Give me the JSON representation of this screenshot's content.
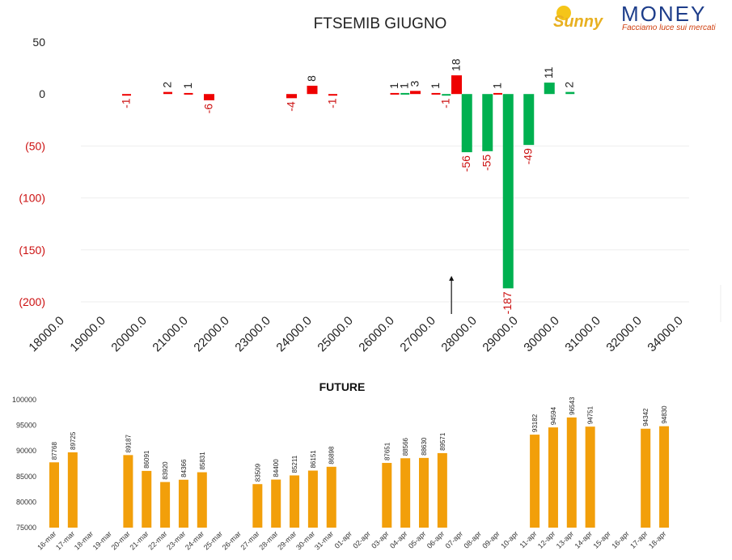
{
  "logo": {
    "sunny": "Sunny",
    "money": "MONEY",
    "tagline": "Facciamo luce sui mercati"
  },
  "chart_data": [
    {
      "type": "bar",
      "title": "FTSEMIB GIUGNO",
      "ylim": [
        -200,
        50
      ],
      "y_ticks": [
        {
          "value": 50,
          "label": "50",
          "color": "#222222"
        },
        {
          "value": 0,
          "label": "0",
          "color": "#222222"
        },
        {
          "value": -50,
          "label": "(50)",
          "color": "#cc1111"
        },
        {
          "value": -100,
          "label": "(100)",
          "color": "#cc1111"
        },
        {
          "value": -150,
          "label": "(150)",
          "color": "#cc1111"
        },
        {
          "value": -200,
          "label": "(200)",
          "color": "#cc1111"
        }
      ],
      "grid": true,
      "x_tick_labels": [
        "18000.0",
        "19000.0",
        "20000.0",
        "21000.0",
        "22000.0",
        "23000.0",
        "24000.0",
        "25000.0",
        "26000.0",
        "27000.0",
        "28000.0",
        "29000.0",
        "30000.0",
        "31000.0",
        "32000.0",
        "34000.0"
      ],
      "colors": {
        "call": "#ee0000",
        "put": "#00b050",
        "negative_label": "#cc1111",
        "positive_label": "#222222"
      },
      "bars": [
        {
          "strike": 19500,
          "value": -1,
          "series": "call"
        },
        {
          "strike": 20500,
          "value": 2,
          "series": "call"
        },
        {
          "strike": 21000,
          "value": 1,
          "series": "call"
        },
        {
          "strike": 21500,
          "value": -6,
          "series": "call"
        },
        {
          "strike": 23500,
          "value": -4,
          "series": "call"
        },
        {
          "strike": 24000,
          "value": 8,
          "series": "call"
        },
        {
          "strike": 24500,
          "value": -1,
          "series": "call"
        },
        {
          "strike": 26000,
          "value": 1,
          "series": "call"
        },
        {
          "strike": 26250,
          "value": 1,
          "series": "put"
        },
        {
          "strike": 26500,
          "value": 3,
          "series": "call"
        },
        {
          "strike": 27000,
          "value": 1,
          "series": "call"
        },
        {
          "strike": 27250,
          "value": -1,
          "series": "put"
        },
        {
          "strike": 27500,
          "value": 18,
          "series": "call"
        },
        {
          "strike": 27750,
          "value": -56,
          "series": "put"
        },
        {
          "strike": 28250,
          "value": -55,
          "series": "put"
        },
        {
          "strike": 28500,
          "value": 1,
          "series": "call"
        },
        {
          "strike": 28750,
          "value": -187,
          "series": "put"
        },
        {
          "strike": 29250,
          "value": -49,
          "series": "put"
        },
        {
          "strike": 29750,
          "value": 11,
          "series": "put"
        },
        {
          "strike": 30250,
          "value": 2,
          "series": "put"
        }
      ],
      "annotation_arrow_strike": 27650,
      "annotation_arrow_tip": -175
    },
    {
      "type": "bar",
      "title": "FUTURE",
      "ylim": [
        75000,
        100000
      ],
      "y_ticks": [
        "100000",
        "95000",
        "90000",
        "85000",
        "80000",
        "75000"
      ],
      "grid": false,
      "bar_color": "#f29f0a",
      "categories": [
        "16-mar",
        "17-mar",
        "18-mar",
        "19-mar",
        "20-mar",
        "21-mar",
        "22-mar",
        "23-mar",
        "24-mar",
        "25-mar",
        "26-mar",
        "27-mar",
        "28-mar",
        "29-mar",
        "30-mar",
        "31-mar",
        "01-apr",
        "02-apr",
        "03-apr",
        "04-apr",
        "05-apr",
        "06-apr",
        "07-apr",
        "08-apr",
        "09-apr",
        "10-apr",
        "11-apr",
        "12-apr",
        "13-apr",
        "14-apr",
        "15-apr",
        "16-apr",
        "17-apr",
        "18-apr"
      ],
      "values": [
        87768,
        89725,
        null,
        null,
        89187,
        86091,
        83920,
        84366,
        85831,
        null,
        null,
        83509,
        84400,
        85211,
        86151,
        86898,
        null,
        null,
        87651,
        88566,
        88630,
        89571,
        null,
        null,
        null,
        null,
        93182,
        94594,
        96543,
        94751,
        null,
        null,
        94342,
        94830
      ]
    }
  ]
}
